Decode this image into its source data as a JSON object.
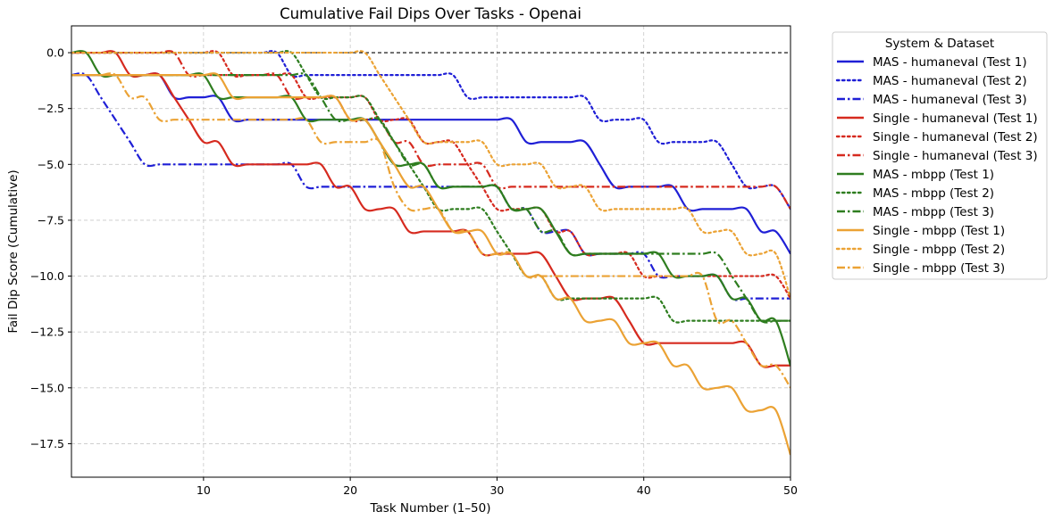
{
  "chart_data": {
    "type": "line",
    "title": "Cumulative Fail Dips Over Tasks - Openai",
    "xlabel": "Task Number (1–50)",
    "ylabel": "Fail Dip Score (Cumulative)",
    "xlim": [
      1,
      50
    ],
    "ylim": [
      -19,
      1.2
    ],
    "xticks": [
      10,
      20,
      30,
      40,
      50
    ],
    "yticks": [
      0.0,
      -2.5,
      -5.0,
      -7.5,
      -10.0,
      -12.5,
      -15.0,
      -17.5
    ],
    "ytick_labels": [
      "0.0",
      "−2.5",
      "−5.0",
      "−7.5",
      "−10.0",
      "−12.5",
      "−15.0",
      "−17.5"
    ],
    "grid": true,
    "reference_line": {
      "y": 0,
      "style": "dashed",
      "color": "#000000"
    },
    "legend": {
      "title": "System & Dataset",
      "placement": "outside-right"
    },
    "series": [
      {
        "name": "MAS - humaneval (Test 1)",
        "color": "#1f1fd6",
        "dash": "solid",
        "values": [
          -1,
          -1,
          -1,
          -1,
          -1,
          -1,
          -1,
          -2,
          -2,
          -2,
          -2,
          -3,
          -3,
          -3,
          -3,
          -3,
          -3,
          -3,
          -3,
          -3,
          -3,
          -3,
          -3,
          -3,
          -3,
          -3,
          -3,
          -3,
          -3,
          -3,
          -3,
          -4,
          -4,
          -4,
          -4,
          -4,
          -5,
          -6,
          -6,
          -6,
          -6,
          -6,
          -7,
          -7,
          -7,
          -7,
          -7,
          -8,
          -8,
          -9
        ]
      },
      {
        "name": "MAS - humaneval (Test 2)",
        "color": "#1f1fd6",
        "dash": "dotted",
        "values": [
          0,
          0,
          0,
          0,
          0,
          0,
          0,
          0,
          0,
          0,
          0,
          0,
          0,
          0,
          0,
          -1,
          -1,
          -1,
          -1,
          -1,
          -1,
          -1,
          -1,
          -1,
          -1,
          -1,
          -1,
          -2,
          -2,
          -2,
          -2,
          -2,
          -2,
          -2,
          -2,
          -2,
          -3,
          -3,
          -3,
          -3,
          -4,
          -4,
          -4,
          -4,
          -4,
          -5,
          -6,
          -6,
          -6,
          -7
        ]
      },
      {
        "name": "MAS - humaneval (Test 3)",
        "color": "#1f1fd6",
        "dash": "dashdot",
        "values": [
          -1,
          -1,
          -2,
          -3,
          -4,
          -5,
          -5,
          -5,
          -5,
          -5,
          -5,
          -5,
          -5,
          -5,
          -5,
          -5,
          -6,
          -6,
          -6,
          -6,
          -6,
          -6,
          -6,
          -6,
          -6,
          -6,
          -6,
          -6,
          -6,
          -6,
          -7,
          -7,
          -8,
          -8,
          -8,
          -9,
          -9,
          -9,
          -9,
          -9,
          -10,
          -10,
          -10,
          -10,
          -10,
          -11,
          -11,
          -11,
          -11,
          -11
        ]
      },
      {
        "name": "Single - humaneval (Test 1)",
        "color": "#d62a1f",
        "dash": "solid",
        "values": [
          0,
          0,
          0,
          0,
          -1,
          -1,
          -1,
          -2,
          -3,
          -4,
          -4,
          -5,
          -5,
          -5,
          -5,
          -5,
          -5,
          -5,
          -6,
          -6,
          -7,
          -7,
          -7,
          -8,
          -8,
          -8,
          -8,
          -8,
          -9,
          -9,
          -9,
          -9,
          -9,
          -10,
          -11,
          -11,
          -11,
          -11,
          -12,
          -13,
          -13,
          -13,
          -13,
          -13,
          -13,
          -13,
          -13,
          -14,
          -14,
          -14
        ]
      },
      {
        "name": "Single - humaneval (Test 2)",
        "color": "#d62a1f",
        "dash": "dotted",
        "values": [
          0,
          0,
          0,
          0,
          0,
          0,
          0,
          0,
          0,
          0,
          0,
          -1,
          -1,
          -1,
          -1,
          -1,
          -2,
          -2,
          -2,
          -2,
          -2,
          -3,
          -3,
          -3,
          -4,
          -4,
          -4,
          -5,
          -6,
          -7,
          -7,
          -7,
          -7,
          -8,
          -8,
          -9,
          -9,
          -9,
          -9,
          -10,
          -10,
          -10,
          -10,
          -10,
          -10,
          -10,
          -10,
          -10,
          -10,
          -11
        ]
      },
      {
        "name": "Single - humaneval (Test 3)",
        "color": "#d62a1f",
        "dash": "dashdot",
        "values": [
          0,
          0,
          0,
          0,
          0,
          0,
          0,
          0,
          -1,
          -1,
          -1,
          -1,
          -1,
          -1,
          -1,
          -2,
          -2,
          -2,
          -2,
          -3,
          -3,
          -3,
          -4,
          -4,
          -5,
          -5,
          -5,
          -5,
          -5,
          -6,
          -6,
          -6,
          -6,
          -6,
          -6,
          -6,
          -6,
          -6,
          -6,
          -6,
          -6,
          -6,
          -6,
          -6,
          -6,
          -6,
          -6,
          -6,
          -6,
          -7
        ]
      },
      {
        "name": "MAS - mbpp (Test 1)",
        "color": "#2e7d1f",
        "dash": "solid",
        "values": [
          0,
          0,
          -1,
          -1,
          -1,
          -1,
          -1,
          -1,
          -1,
          -1,
          -2,
          -2,
          -2,
          -2,
          -2,
          -2,
          -3,
          -3,
          -3,
          -3,
          -3,
          -4,
          -5,
          -5,
          -5,
          -6,
          -6,
          -6,
          -6,
          -6,
          -7,
          -7,
          -7,
          -8,
          -9,
          -9,
          -9,
          -9,
          -9,
          -9,
          -9,
          -10,
          -10,
          -10,
          -10,
          -11,
          -11,
          -12,
          -12,
          -14
        ]
      },
      {
        "name": "MAS - mbpp (Test 2)",
        "color": "#2e7d1f",
        "dash": "dotted",
        "values": [
          0,
          0,
          0,
          0,
          0,
          0,
          0,
          0,
          0,
          0,
          0,
          0,
          0,
          0,
          0,
          0,
          -1,
          -2,
          -2,
          -2,
          -2,
          -3,
          -4,
          -5,
          -6,
          -7,
          -7,
          -7,
          -7,
          -8,
          -9,
          -10,
          -10,
          -11,
          -11,
          -11,
          -11,
          -11,
          -11,
          -11,
          -11,
          -12,
          -12,
          -12,
          -12,
          -12,
          -12,
          -12,
          -12,
          -12
        ]
      },
      {
        "name": "MAS - mbpp (Test 3)",
        "color": "#2e7d1f",
        "dash": "dashdot",
        "values": [
          -1,
          -1,
          -1,
          -1,
          -1,
          -1,
          -1,
          -1,
          -1,
          -1,
          -1,
          -1,
          -1,
          -1,
          -1,
          -1,
          -1,
          -2,
          -3,
          -3,
          -3,
          -3,
          -4,
          -5,
          -5,
          -6,
          -6,
          -6,
          -6,
          -6,
          -7,
          -7,
          -8,
          -8,
          -9,
          -9,
          -9,
          -9,
          -9,
          -9,
          -9,
          -9,
          -9,
          -9,
          -9,
          -10,
          -11,
          -12,
          -12,
          -12
        ]
      },
      {
        "name": "Single - mbpp (Test 1)",
        "color": "#eba234",
        "dash": "solid",
        "values": [
          -1,
          -1,
          -1,
          -1,
          -1,
          -1,
          -1,
          -1,
          -1,
          -1,
          -1,
          -2,
          -2,
          -2,
          -2,
          -2,
          -2,
          -2,
          -2,
          -3,
          -3,
          -4,
          -5,
          -6,
          -6,
          -7,
          -8,
          -8,
          -8,
          -9,
          -9,
          -10,
          -10,
          -11,
          -11,
          -12,
          -12,
          -12,
          -13,
          -13,
          -13,
          -14,
          -14,
          -15,
          -15,
          -15,
          -16,
          -16,
          -16,
          -18
        ]
      },
      {
        "name": "Single - mbpp (Test 2)",
        "color": "#eba234",
        "dash": "dotted",
        "values": [
          0,
          0,
          0,
          0,
          0,
          0,
          0,
          0,
          0,
          0,
          0,
          0,
          0,
          0,
          0,
          0,
          0,
          0,
          0,
          0,
          0,
          -1,
          -2,
          -3,
          -4,
          -4,
          -4,
          -4,
          -4,
          -5,
          -5,
          -5,
          -5,
          -6,
          -6,
          -6,
          -7,
          -7,
          -7,
          -7,
          -7,
          -7,
          -7,
          -8,
          -8,
          -8,
          -9,
          -9,
          -9,
          -11
        ]
      },
      {
        "name": "Single - mbpp (Test 3)",
        "color": "#eba234",
        "dash": "dashdot",
        "values": [
          -1,
          -1,
          -1,
          -1,
          -2,
          -2,
          -3,
          -3,
          -3,
          -3,
          -3,
          -3,
          -3,
          -3,
          -3,
          -3,
          -3,
          -4,
          -4,
          -4,
          -4,
          -4,
          -6,
          -7,
          -7,
          -7,
          -8,
          -8,
          -9,
          -9,
          -9,
          -10,
          -10,
          -10,
          -10,
          -10,
          -10,
          -10,
          -10,
          -10,
          -10,
          -10,
          -10,
          -10,
          -12,
          -12,
          -13,
          -14,
          -14,
          -15
        ]
      }
    ]
  }
}
